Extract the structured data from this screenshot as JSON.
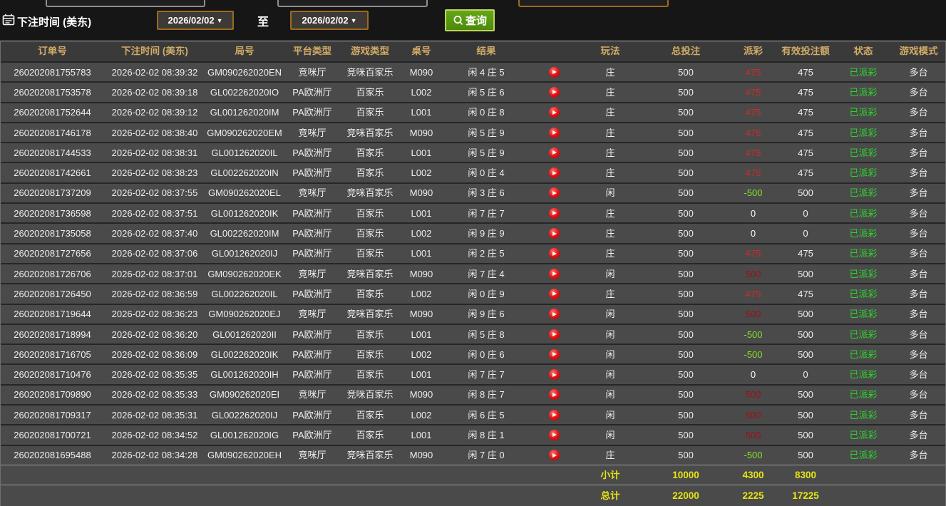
{
  "topbar": {
    "bet_time_label": "下注时间 (美东)",
    "date_from": "2026/02/02",
    "to_label": "至",
    "date_to": "2026/02/02",
    "query_label": "查询"
  },
  "table": {
    "headers": [
      "订单号",
      "下注时间 (美东)",
      "局号",
      "平台类型",
      "游戏类型",
      "桌号",
      "结果",
      "",
      "玩法",
      "总投注",
      "派彩",
      "有效投注额",
      "状态",
      "游戏模式"
    ],
    "rows": [
      {
        "order": "260202081755783",
        "time": "2026-02-02 08:39:32",
        "round": "GM090262020EN",
        "platform": "竞咪厅",
        "game": "竞咪百家乐",
        "table": "M090",
        "result": "闲 4 庄 5",
        "bet_type": "庄",
        "total_bet": "500",
        "payout": "475",
        "payout_tone": "win",
        "valid_bet": "475",
        "status": "已派彩",
        "mode": "多台"
      },
      {
        "order": "260202081753578",
        "time": "2026-02-02 08:39:18",
        "round": "GL002262020IO",
        "platform": "PA欧洲厅",
        "game": "百家乐",
        "table": "L002",
        "result": "闲 5 庄 6",
        "bet_type": "庄",
        "total_bet": "500",
        "payout": "475",
        "payout_tone": "win",
        "valid_bet": "475",
        "status": "已派彩",
        "mode": "多台"
      },
      {
        "order": "260202081752644",
        "time": "2026-02-02 08:39:12",
        "round": "GL001262020IM",
        "platform": "PA欧洲厅",
        "game": "百家乐",
        "table": "L001",
        "result": "闲 0 庄 8",
        "bet_type": "庄",
        "total_bet": "500",
        "payout": "475",
        "payout_tone": "win",
        "valid_bet": "475",
        "status": "已派彩",
        "mode": "多台"
      },
      {
        "order": "260202081746178",
        "time": "2026-02-02 08:38:40",
        "round": "GM090262020EM",
        "platform": "竞咪厅",
        "game": "竞咪百家乐",
        "table": "M090",
        "result": "闲 5 庄 9",
        "bet_type": "庄",
        "total_bet": "500",
        "payout": "475",
        "payout_tone": "win",
        "valid_bet": "475",
        "status": "已派彩",
        "mode": "多台"
      },
      {
        "order": "260202081744533",
        "time": "2026-02-02 08:38:31",
        "round": "GL001262020IL",
        "platform": "PA欧洲厅",
        "game": "百家乐",
        "table": "L001",
        "result": "闲 5 庄 9",
        "bet_type": "庄",
        "total_bet": "500",
        "payout": "475",
        "payout_tone": "win",
        "valid_bet": "475",
        "status": "已派彩",
        "mode": "多台"
      },
      {
        "order": "260202081742661",
        "time": "2026-02-02 08:38:23",
        "round": "GL002262020IN",
        "platform": "PA欧洲厅",
        "game": "百家乐",
        "table": "L002",
        "result": "闲 0 庄 4",
        "bet_type": "庄",
        "total_bet": "500",
        "payout": "475",
        "payout_tone": "win",
        "valid_bet": "475",
        "status": "已派彩",
        "mode": "多台"
      },
      {
        "order": "260202081737209",
        "time": "2026-02-02 08:37:55",
        "round": "GM090262020EL",
        "platform": "竞咪厅",
        "game": "竞咪百家乐",
        "table": "M090",
        "result": "闲 3 庄 6",
        "bet_type": "闲",
        "total_bet": "500",
        "payout": "-500",
        "payout_tone": "loss",
        "valid_bet": "500",
        "status": "已派彩",
        "mode": "多台"
      },
      {
        "order": "260202081736598",
        "time": "2026-02-02 08:37:51",
        "round": "GL001262020IK",
        "platform": "PA欧洲厅",
        "game": "百家乐",
        "table": "L001",
        "result": "闲 7 庄 7",
        "bet_type": "庄",
        "total_bet": "500",
        "payout": "0",
        "payout_tone": "zero",
        "valid_bet": "0",
        "status": "已派彩",
        "mode": "多台"
      },
      {
        "order": "260202081735058",
        "time": "2026-02-02 08:37:40",
        "round": "GL002262020IM",
        "platform": "PA欧洲厅",
        "game": "百家乐",
        "table": "L002",
        "result": "闲 9 庄 9",
        "bet_type": "庄",
        "total_bet": "500",
        "payout": "0",
        "payout_tone": "zero",
        "valid_bet": "0",
        "status": "已派彩",
        "mode": "多台"
      },
      {
        "order": "260202081727656",
        "time": "2026-02-02 08:37:06",
        "round": "GL001262020IJ",
        "platform": "PA欧洲厅",
        "game": "百家乐",
        "table": "L001",
        "result": "闲 2 庄 5",
        "bet_type": "庄",
        "total_bet": "500",
        "payout": "475",
        "payout_tone": "win",
        "valid_bet": "475",
        "status": "已派彩",
        "mode": "多台"
      },
      {
        "order": "260202081726706",
        "time": "2026-02-02 08:37:01",
        "round": "GM090262020EK",
        "platform": "竞咪厅",
        "game": "竞咪百家乐",
        "table": "M090",
        "result": "闲 7 庄 4",
        "bet_type": "闲",
        "total_bet": "500",
        "payout": "500",
        "payout_tone": "win_dim",
        "valid_bet": "500",
        "status": "已派彩",
        "mode": "多台"
      },
      {
        "order": "260202081726450",
        "time": "2026-02-02 08:36:59",
        "round": "GL002262020IL",
        "platform": "PA欧洲厅",
        "game": "百家乐",
        "table": "L002",
        "result": "闲 0 庄 9",
        "bet_type": "庄",
        "total_bet": "500",
        "payout": "475",
        "payout_tone": "win",
        "valid_bet": "475",
        "status": "已派彩",
        "mode": "多台"
      },
      {
        "order": "260202081719644",
        "time": "2026-02-02 08:36:23",
        "round": "GM090262020EJ",
        "platform": "竞咪厅",
        "game": "竞咪百家乐",
        "table": "M090",
        "result": "闲 9 庄 6",
        "bet_type": "闲",
        "total_bet": "500",
        "payout": "500",
        "payout_tone": "win_dim",
        "valid_bet": "500",
        "status": "已派彩",
        "mode": "多台"
      },
      {
        "order": "260202081718994",
        "time": "2026-02-02 08:36:20",
        "round": "GL001262020II",
        "platform": "PA欧洲厅",
        "game": "百家乐",
        "table": "L001",
        "result": "闲 5 庄 8",
        "bet_type": "闲",
        "total_bet": "500",
        "payout": "-500",
        "payout_tone": "loss",
        "valid_bet": "500",
        "status": "已派彩",
        "mode": "多台"
      },
      {
        "order": "260202081716705",
        "time": "2026-02-02 08:36:09",
        "round": "GL002262020IK",
        "platform": "PA欧洲厅",
        "game": "百家乐",
        "table": "L002",
        "result": "闲 0 庄 6",
        "bet_type": "闲",
        "total_bet": "500",
        "payout": "-500",
        "payout_tone": "loss",
        "valid_bet": "500",
        "status": "已派彩",
        "mode": "多台"
      },
      {
        "order": "260202081710476",
        "time": "2026-02-02 08:35:35",
        "round": "GL001262020IH",
        "platform": "PA欧洲厅",
        "game": "百家乐",
        "table": "L001",
        "result": "闲 7 庄 7",
        "bet_type": "闲",
        "total_bet": "500",
        "payout": "0",
        "payout_tone": "zero",
        "valid_bet": "0",
        "status": "已派彩",
        "mode": "多台"
      },
      {
        "order": "260202081709890",
        "time": "2026-02-02 08:35:33",
        "round": "GM090262020EI",
        "platform": "竞咪厅",
        "game": "竞咪百家乐",
        "table": "M090",
        "result": "闲 8 庄 7",
        "bet_type": "闲",
        "total_bet": "500",
        "payout": "500",
        "payout_tone": "win_dim",
        "valid_bet": "500",
        "status": "已派彩",
        "mode": "多台"
      },
      {
        "order": "260202081709317",
        "time": "2026-02-02 08:35:31",
        "round": "GL002262020IJ",
        "platform": "PA欧洲厅",
        "game": "百家乐",
        "table": "L002",
        "result": "闲 6 庄 5",
        "bet_type": "闲",
        "total_bet": "500",
        "payout": "500",
        "payout_tone": "win_dim",
        "valid_bet": "500",
        "status": "已派彩",
        "mode": "多台"
      },
      {
        "order": "260202081700721",
        "time": "2026-02-02 08:34:52",
        "round": "GL001262020IG",
        "platform": "PA欧洲厅",
        "game": "百家乐",
        "table": "L001",
        "result": "闲 8 庄 1",
        "bet_type": "闲",
        "total_bet": "500",
        "payout": "500",
        "payout_tone": "win_dim",
        "valid_bet": "500",
        "status": "已派彩",
        "mode": "多台"
      },
      {
        "order": "260202081695488",
        "time": "2026-02-02 08:34:28",
        "round": "GM090262020EH",
        "platform": "竞咪厅",
        "game": "竞咪百家乐",
        "table": "M090",
        "result": "闲 7 庄 0",
        "bet_type": "庄",
        "total_bet": "500",
        "payout": "-500",
        "payout_tone": "loss",
        "valid_bet": "500",
        "status": "已派彩",
        "mode": "多台"
      }
    ],
    "subtotal": {
      "label": "小计",
      "total_bet": "10000",
      "payout": "4300",
      "valid_bet": "8300"
    },
    "grand_total": {
      "label": "总计",
      "total_bet": "22000",
      "payout": "2225",
      "valid_bet": "17225"
    }
  },
  "colors": {
    "payout_win": "#cf2a2a",
    "payout_win_dim": "#9d1117",
    "payout_loss": "#84e42a",
    "payout_zero": "#ffffff",
    "status_paid": "#2fd32f",
    "footer_text": "#e6e414",
    "header_text": "#d2ab66",
    "query_button_green": "#4c8a08",
    "date_box_border": "#9c6a1e"
  }
}
